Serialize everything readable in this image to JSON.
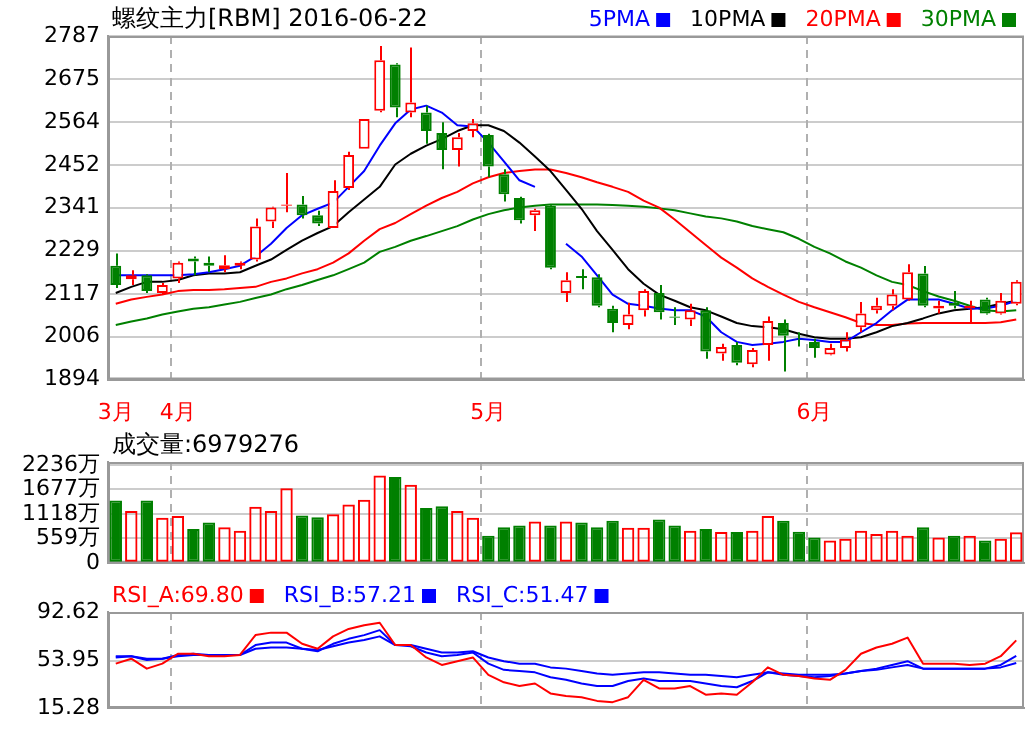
{
  "chart_data": [
    {
      "type": "candlestick",
      "title": "螺纹主力[RBM] 2016-06-22",
      "legend": "top right",
      "grid": true,
      "categories": [
        "3月",
        null,
        null,
        null,
        "4月",
        null,
        null,
        null,
        null,
        null,
        null,
        null,
        null,
        null,
        null,
        null,
        null,
        null,
        null,
        null,
        null,
        null,
        null,
        null,
        "5月",
        null,
        null,
        null,
        null,
        null,
        null,
        null,
        null,
        null,
        null,
        null,
        null,
        null,
        null,
        null,
        null,
        null,
        null,
        null,
        null,
        "6月",
        null,
        null,
        null,
        null,
        null,
        null,
        null,
        null,
        null,
        null,
        null,
        null,
        null
      ],
      "ylim": [
        1894,
        2787
      ],
      "yticks": [
        1894,
        2006,
        2117,
        2229,
        2341,
        2452,
        2564,
        2675,
        2787
      ],
      "ohlc": [
        [
          2190,
          2222,
          2132,
          2140
        ],
        [
          2155,
          2178,
          2140,
          2165
        ],
        [
          2165,
          2168,
          2119,
          2124
        ],
        [
          2119,
          2145,
          2115,
          2140
        ],
        [
          2157,
          2201,
          2145,
          2198
        ],
        [
          2209,
          2214,
          2165,
          2201
        ],
        [
          2198,
          2214,
          2173,
          2190
        ],
        [
          2181,
          2217,
          2173,
          2191
        ],
        [
          2190,
          2201,
          2181,
          2198
        ],
        [
          2206,
          2313,
          2201,
          2292
        ],
        [
          2305,
          2343,
          2288,
          2341
        ],
        [
          2346,
          2431,
          2329,
          2349
        ],
        [
          2349,
          2371,
          2313,
          2321
        ],
        [
          2321,
          2333,
          2293,
          2300
        ],
        [
          2288,
          2412,
          2288,
          2384
        ],
        [
          2392,
          2486,
          2387,
          2478
        ],
        [
          2494,
          2571,
          2494,
          2571
        ],
        [
          2593,
          2761,
          2589,
          2724
        ],
        [
          2713,
          2716,
          2576,
          2601
        ],
        [
          2588,
          2757,
          2576,
          2614
        ],
        [
          2588,
          2606,
          2507,
          2540
        ],
        [
          2535,
          2563,
          2441,
          2491
        ],
        [
          2491,
          2535,
          2448,
          2524
        ],
        [
          2540,
          2571,
          2524,
          2560
        ],
        [
          2530,
          2533,
          2420,
          2448
        ],
        [
          2428,
          2441,
          2357,
          2376
        ],
        [
          2366,
          2369,
          2300,
          2308
        ],
        [
          2321,
          2338,
          2280,
          2334
        ],
        [
          2346,
          2349,
          2181,
          2185
        ],
        [
          2119,
          2173,
          2096,
          2152
        ],
        [
          2163,
          2181,
          2129,
          2158
        ],
        [
          2160,
          2168,
          2082,
          2086
        ],
        [
          2078,
          2086,
          2017,
          2041
        ],
        [
          2036,
          2094,
          2025,
          2063
        ],
        [
          2074,
          2129,
          2058,
          2124
        ],
        [
          2119,
          2140,
          2050,
          2069
        ],
        [
          2058,
          2082,
          2036,
          2055
        ],
        [
          2050,
          2091,
          2033,
          2074
        ],
        [
          2074,
          2082,
          1948,
          1967
        ],
        [
          1962,
          1987,
          1943,
          1979
        ],
        [
          1984,
          1992,
          1931,
          1938
        ],
        [
          1934,
          1976,
          1926,
          1971
        ],
        [
          1984,
          2058,
          1943,
          2046
        ],
        [
          2041,
          2050,
          1915,
          2008
        ],
        [
          1998,
          2017,
          1980,
          1997
        ],
        [
          1992,
          2000,
          1951,
          1976
        ],
        [
          1959,
          1987,
          1957,
          1976
        ],
        [
          1976,
          2017,
          1967,
          1998
        ],
        [
          2030,
          2096,
          2017,
          2066
        ],
        [
          2074,
          2107,
          2066,
          2086
        ],
        [
          2086,
          2129,
          2074,
          2115
        ],
        [
          2102,
          2194,
          2099,
          2173
        ],
        [
          2170,
          2189,
          2082,
          2086
        ],
        [
          2079,
          2099,
          2066,
          2086
        ],
        [
          2094,
          2124,
          2079,
          2086
        ],
        [
          2079,
          2099,
          2041,
          2086
        ],
        [
          2102,
          2107,
          2063,
          2066
        ],
        [
          2066,
          2119,
          2063,
          2099
        ],
        [
          2091,
          2152,
          2087,
          2148
        ]
      ],
      "colors": [
        "#008000",
        "#ff0000",
        "#008000",
        "#ff0000",
        "#ff0000",
        "#008000",
        "#008000",
        "#ff0000",
        "#ff0000",
        "#ff0000",
        "#ff0000",
        "#ff0000",
        "#008000",
        "#008000",
        "#ff0000",
        "#ff0000",
        "#ff0000",
        "#ff0000",
        "#008000",
        "#ff0000",
        "#008000",
        "#008000",
        "#ff0000",
        "#ff0000",
        "#008000",
        "#008000",
        "#008000",
        "#ff0000",
        "#008000",
        "#ff0000",
        "#008000",
        "#008000",
        "#008000",
        "#ff0000",
        "#ff0000",
        "#008000",
        "#008000",
        "#ff0000",
        "#008000",
        "#ff0000",
        "#008000",
        "#ff0000",
        "#ff0000",
        "#008000",
        "#008000",
        "#008000",
        "#ff0000",
        "#ff0000",
        "#ff0000",
        "#ff0000",
        "#ff0000",
        "#ff0000",
        "#008000",
        "#ff0000",
        "#008000",
        "#ff0000",
        "#008000",
        "#ff0000",
        "#ff0000"
      ],
      "series": [
        {
          "type": "line",
          "name": "5PMA",
          "color": "#0000ff",
          "values": [
            2165,
            2165,
            2165,
            2165,
            2165,
            2168,
            2173,
            2181,
            2190,
            2214,
            2247,
            2288,
            2321,
            2338,
            2354,
            2395,
            2436,
            2502,
            2560,
            2596,
            2606,
            2588,
            2555,
            2552,
            2510,
            2461,
            2412,
            2395,
            null,
            2247,
            2214,
            2165,
            2115,
            2091,
            2086,
            2079,
            2074,
            2074,
            2058,
            2017,
            1992,
            1984,
            1987,
            1992,
            2000,
            1997,
            1992,
            1992,
            2017,
            2041,
            2074,
            2102,
            2102,
            2102,
            2091,
            2079,
            2079,
            2086,
            2099
          ]
        },
        {
          "type": "line",
          "name": "10PMA",
          "color": "#000000",
          "values": [
            2119,
            2135,
            2148,
            2148,
            2153,
            2165,
            2170,
            2170,
            2173,
            2190,
            2206,
            2231,
            2255,
            2275,
            2293,
            2329,
            2362,
            2395,
            2453,
            2481,
            2502,
            2519,
            2540,
            2555,
            2555,
            2540,
            2510,
            2474,
            2436,
            2387,
            2338,
            2280,
            2231,
            2181,
            2143,
            2115,
            2099,
            2082,
            2074,
            2058,
            2041,
            2033,
            2030,
            2025,
            2013,
            2004,
            2000,
            2000,
            2004,
            2017,
            2033,
            2041,
            2053,
            2066,
            2074,
            2078,
            2082,
            2091,
            2099
          ]
        },
        {
          "type": "line",
          "name": "20PMA",
          "color": "#ff0000",
          "values": [
            2091,
            2102,
            2109,
            2115,
            2124,
            2127,
            2127,
            2129,
            2132,
            2135,
            2148,
            2157,
            2170,
            2181,
            2198,
            2222,
            2255,
            2285,
            2301,
            2324,
            2346,
            2366,
            2382,
            2404,
            2420,
            2431,
            2436,
            2440,
            2440,
            2431,
            2420,
            2407,
            2395,
            2382,
            2359,
            2341,
            2310,
            2277,
            2244,
            2211,
            2185,
            2157,
            2135,
            2115,
            2096,
            2082,
            2069,
            2056,
            2041,
            2036,
            2036,
            2040,
            2041,
            2041,
            2041,
            2041,
            2041,
            2043,
            2050
          ]
        },
        {
          "type": "line",
          "name": "30PMA",
          "color": "#008000",
          "values": [
            2036,
            2045,
            2053,
            2063,
            2071,
            2078,
            2082,
            2089,
            2096,
            2106,
            2115,
            2129,
            2140,
            2153,
            2165,
            2181,
            2198,
            2226,
            2239,
            2255,
            2267,
            2280,
            2293,
            2310,
            2324,
            2334,
            2341,
            2346,
            2349,
            2349,
            2349,
            2349,
            2348,
            2346,
            2343,
            2339,
            2334,
            2326,
            2318,
            2313,
            2305,
            2293,
            2285,
            2277,
            2260,
            2239,
            2222,
            2201,
            2185,
            2165,
            2148,
            2140,
            2124,
            2110,
            2099,
            2086,
            2074,
            2071,
            2074
          ]
        }
      ]
    },
    {
      "type": "bar",
      "title": "成交量:6979276",
      "grid": true,
      "tick_labels": "y",
      "categories": [
        null,
        null,
        null,
        null,
        null,
        null,
        null,
        null,
        null,
        null,
        null,
        null,
        null,
        null,
        null,
        null,
        null,
        null,
        null,
        null,
        null,
        null,
        null,
        null,
        null,
        null,
        null,
        null,
        null,
        null,
        null,
        null,
        null,
        null,
        null,
        null,
        null,
        null,
        null,
        null,
        null,
        null,
        null,
        null,
        null,
        null,
        null,
        null,
        null,
        null,
        null,
        null,
        null,
        null,
        null,
        null,
        null,
        null,
        null
      ],
      "ylim": [
        0,
        2300
      ],
      "yticks": [
        0,
        {
          "value": 559,
          "label": "559万"
        },
        {
          "value": 1118,
          "label": "1118万"
        },
        {
          "value": 1677,
          "label": "1677万"
        },
        {
          "value": 2236,
          "label": "2236万"
        }
      ],
      "values": [
        1420,
        1180,
        1420,
        1030,
        1070,
        770,
        920,
        810,
        730,
        1280,
        1180,
        1700,
        1080,
        1040,
        1110,
        1330,
        1440,
        1990,
        1960,
        1780,
        1250,
        1290,
        1180,
        1030,
        620,
        810,
        850,
        940,
        850,
        940,
        920,
        810,
        960,
        800,
        800,
        990,
        850,
        730,
        770,
        700,
        700,
        730,
        1070,
        960,
        710,
        580,
        510,
        550,
        730,
        660,
        730,
        620,
        810,
        580,
        620,
        620,
        510,
        550,
        698
      ],
      "colors": [
        "#008000",
        "#ff0000",
        "#008000",
        "#ff0000",
        "#ff0000",
        "#008000",
        "#008000",
        "#ff0000",
        "#ff0000",
        "#ff0000",
        "#ff0000",
        "#ff0000",
        "#008000",
        "#008000",
        "#ff0000",
        "#ff0000",
        "#ff0000",
        "#ff0000",
        "#008000",
        "#ff0000",
        "#008000",
        "#008000",
        "#ff0000",
        "#ff0000",
        "#008000",
        "#008000",
        "#008000",
        "#ff0000",
        "#008000",
        "#ff0000",
        "#008000",
        "#008000",
        "#008000",
        "#ff0000",
        "#ff0000",
        "#008000",
        "#008000",
        "#ff0000",
        "#008000",
        "#ff0000",
        "#008000",
        "#ff0000",
        "#ff0000",
        "#008000",
        "#008000",
        "#008000",
        "#ff0000",
        "#ff0000",
        "#ff0000",
        "#ff0000",
        "#ff0000",
        "#ff0000",
        "#008000",
        "#ff0000",
        "#008000",
        "#ff0000",
        "#008000",
        "#ff0000",
        "#ff0000"
      ]
    },
    {
      "type": "line",
      "legend": "top left",
      "grid": "x",
      "tick_labels": "y",
      "ref_lines": [
        {
          "axis": "y",
          "value": 53.95,
          "color": "#cccccc"
        }
      ],
      "categories": [
        null,
        null,
        null,
        null,
        null,
        null,
        null,
        null,
        null,
        null,
        null,
        null,
        null,
        null,
        null,
        null,
        null,
        null,
        null,
        null,
        null,
        null,
        null,
        null,
        null,
        null,
        null,
        null,
        null,
        null,
        null,
        null,
        null,
        null,
        null,
        null,
        null,
        null,
        null,
        null,
        null,
        null,
        null,
        null,
        null,
        null,
        null,
        null,
        null,
        null,
        null,
        null,
        null,
        null,
        null,
        null,
        null,
        null,
        null
      ],
      "ylim": [
        15.28,
        92.62
      ],
      "yticks": [
        15.28,
        53.95,
        92.62
      ],
      "series": [
        {
          "name": "RSI_A:69.80",
          "color": "#ff0000",
          "values": [
            51,
            55,
            47,
            51,
            59,
            59,
            57,
            57,
            58,
            74,
            76,
            76,
            67,
            63,
            73,
            79,
            82,
            84,
            66,
            66,
            56,
            50,
            53,
            56,
            42,
            36,
            33,
            35,
            27,
            25,
            24,
            21,
            20,
            24,
            38,
            31,
            31,
            33,
            26,
            27,
            26,
            36,
            48,
            42,
            41,
            39,
            38,
            46,
            59,
            64,
            67,
            72,
            51,
            51,
            51,
            50,
            51,
            57,
            69.8
          ]
        },
        {
          "name": "RSI_B:57.21",
          "color": "#0000ff",
          "values": [
            56,
            57,
            54,
            55,
            58,
            59,
            58,
            58,
            58,
            66,
            68,
            68,
            63,
            61,
            67,
            71,
            74,
            78,
            66,
            65,
            60,
            57,
            58,
            60,
            51,
            46,
            45,
            44,
            40,
            38,
            35,
            33,
            33,
            37,
            39,
            37,
            37,
            37,
            35,
            33,
            32,
            37,
            44,
            42,
            41,
            40,
            41,
            43,
            45,
            47,
            50,
            53,
            47,
            47,
            47,
            47,
            47,
            50,
            57.21
          ]
        },
        {
          "name": "RSI_C:51.47",
          "color": "#0000ff",
          "values": [
            57,
            57,
            55,
            55,
            57,
            58,
            58,
            58,
            58,
            63,
            64,
            64,
            63,
            62,
            65,
            68,
            70,
            73,
            66,
            66,
            63,
            60,
            60,
            61,
            56,
            53,
            51,
            51,
            48,
            47,
            45,
            43,
            42,
            43,
            44,
            44,
            43,
            42,
            42,
            41,
            40,
            42,
            44,
            43,
            42,
            42,
            42,
            43,
            45,
            46,
            48,
            50,
            47,
            47,
            47,
            47,
            47,
            48,
            51.47
          ]
        }
      ]
    }
  ]
}
